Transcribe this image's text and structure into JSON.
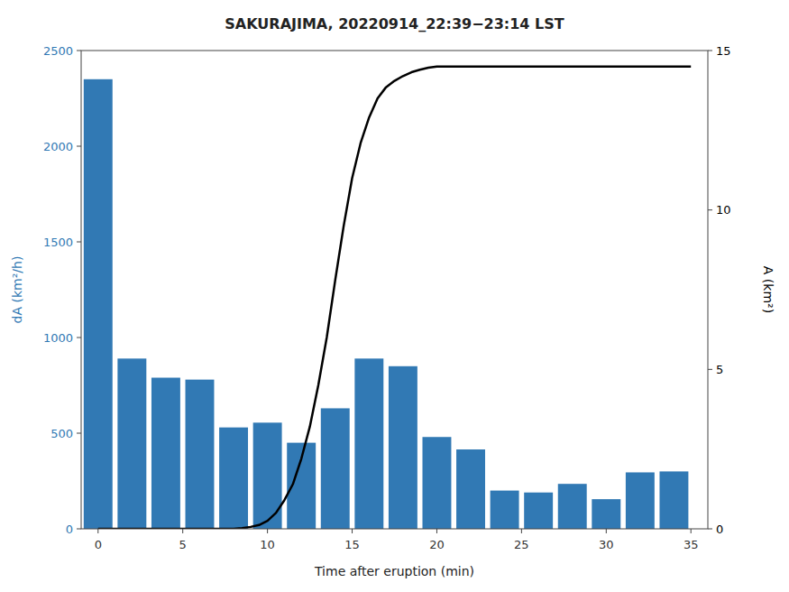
{
  "chart_data": {
    "type": "bar",
    "title": "SAKURAJIMA, 20220914_22:39−23:14 LST",
    "x_label": "Time after eruption (min)",
    "y_label": "dA (km²/h)",
    "y2_label": "A (km²)",
    "series": [
      {
        "type": "bar",
        "color": "#3179b4",
        "x": [
          0,
          2,
          4,
          6,
          8,
          10,
          12,
          14,
          16,
          18,
          20,
          22,
          24,
          26,
          28,
          30,
          32,
          34
        ],
        "values": [
          2350,
          890,
          790,
          780,
          530,
          555,
          450,
          630,
          890,
          850,
          480,
          415,
          200,
          190,
          235,
          155,
          295,
          300
        ]
      },
      {
        "type": "line",
        "color": "#000000",
        "axis": "y2",
        "x": [
          0,
          1,
          2,
          3,
          4,
          5,
          6,
          7,
          8,
          8.5,
          9,
          9.5,
          10,
          10.5,
          11,
          11.5,
          12,
          12.5,
          13,
          13.5,
          14,
          14.5,
          15,
          15.5,
          16,
          16.5,
          17,
          17.5,
          18,
          18.5,
          19,
          19.5,
          20,
          21,
          22,
          23,
          24,
          25,
          26,
          27,
          28,
          29,
          30,
          31,
          32,
          33,
          34,
          35
        ],
        "values": [
          0.0,
          0.0,
          0.0,
          0.0,
          0.0,
          0.0,
          0.0,
          0.0,
          0.0,
          0.02,
          0.06,
          0.12,
          0.25,
          0.5,
          0.9,
          1.4,
          2.2,
          3.2,
          4.5,
          6.0,
          7.8,
          9.5,
          11.0,
          12.1,
          12.9,
          13.5,
          13.85,
          14.05,
          14.2,
          14.32,
          14.4,
          14.46,
          14.5,
          14.5,
          14.5,
          14.5,
          14.5,
          14.5,
          14.5,
          14.5,
          14.5,
          14.5,
          14.5,
          14.5,
          14.5,
          14.5,
          14.5,
          14.5
        ]
      }
    ],
    "xlim": [
      -1,
      36
    ],
    "xticks": [
      0,
      5,
      10,
      15,
      20,
      25,
      30,
      35
    ],
    "ylim": [
      0,
      2500
    ],
    "yticks": [
      0,
      500,
      1000,
      1500,
      2000,
      2500
    ],
    "y2lim": [
      0,
      15
    ],
    "y2ticks": [
      0,
      5,
      10,
      15
    ],
    "grid": false
  }
}
